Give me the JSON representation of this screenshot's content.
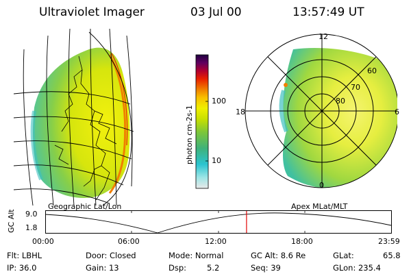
{
  "header": {
    "title": "Ultraviolet Imager",
    "date": "03 Jul 00",
    "time": "13:57:49 UT"
  },
  "colorbar": {
    "label": "photon cm-2s-1",
    "ticks": [
      "100",
      "10"
    ]
  },
  "left_panel": {
    "caption": "Geographic Lat/Lon"
  },
  "right_panel": {
    "caption": "Apex MLat/MLT",
    "mlt_labels": [
      "12",
      "18",
      "6",
      "0"
    ],
    "lat_labels": [
      "60",
      "70",
      "80"
    ]
  },
  "orbit": {
    "ylabel": "GC Alt",
    "yticks": [
      "9.0",
      "1.8"
    ],
    "xticks": [
      "00:00",
      "06:00",
      "12:00",
      "18:00",
      "23:59"
    ],
    "current_fraction": 0.582
  },
  "status": {
    "flt": "Flt: LBHL",
    "ip": "IP: 36.0",
    "door": "Door: Closed",
    "gain": "Gain: 13",
    "mode": "Mode: Normal",
    "dsp": "Dsp:",
    "dsp_value": "5.2",
    "gc_alt": "GC Alt: 8.6 Re",
    "seq": "Seq: 39",
    "glat": "GLat:",
    "glat_value": "65.8",
    "glon": "GLon: 235.4"
  },
  "colors": {
    "marker": "#e00000",
    "gradient": [
      "#e8e8e8",
      "#9fe6e6",
      "#2ac4d0",
      "#3fb27a",
      "#7cc63a",
      "#c8e000",
      "#f0f000",
      "#f8c000",
      "#f08000",
      "#e82000",
      "#b00030",
      "#600060",
      "#200040"
    ]
  }
}
